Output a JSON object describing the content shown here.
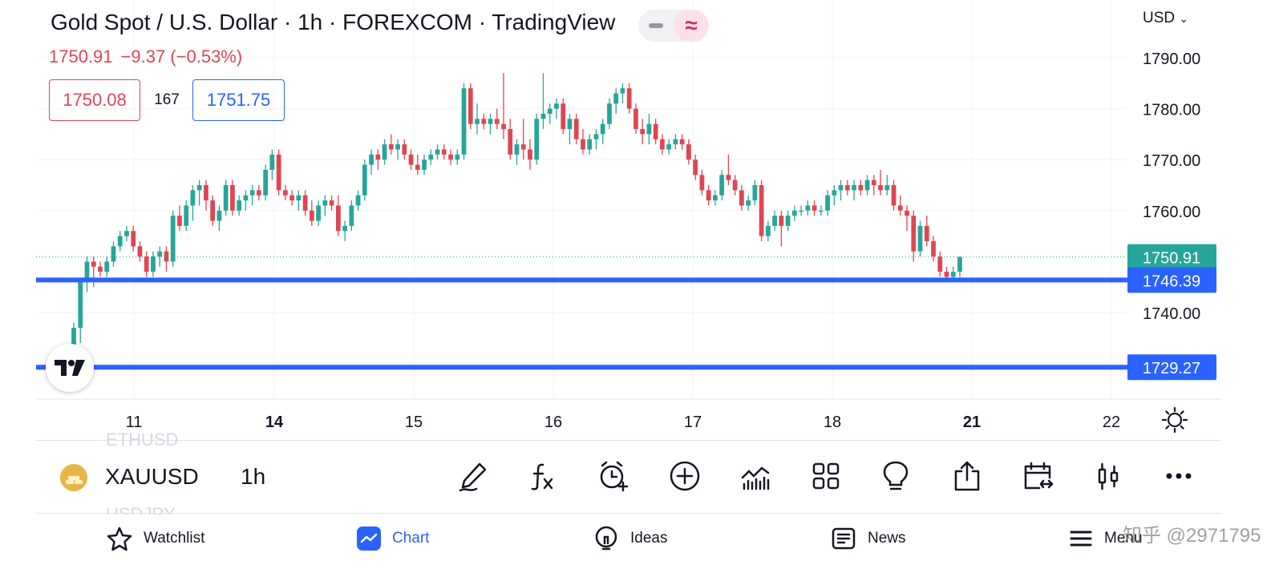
{
  "header": {
    "title": "Gold Spot / U.S. Dollar · 1h · FOREXCOM · TradingView",
    "last_price": "1750.91",
    "change": "−9.37 (−0.53%)",
    "bid": "1750.08",
    "spread": "167",
    "ask": "1751.75",
    "currency": "USD"
  },
  "colors": {
    "up": "#26a69a",
    "down": "#e04552",
    "accent": "#2962ff"
  },
  "chart_data": {
    "type": "candlestick",
    "y_ticks": [
      "1790.00",
      "1780.00",
      "1770.00",
      "1760.00",
      "1740.00"
    ],
    "y_range": [
      1728,
      1792
    ],
    "x_ticks": [
      {
        "label": "11",
        "bold": false
      },
      {
        "label": "14",
        "bold": true
      },
      {
        "label": "15",
        "bold": false
      },
      {
        "label": "16",
        "bold": false
      },
      {
        "label": "17",
        "bold": false
      },
      {
        "label": "18",
        "bold": false
      },
      {
        "label": "21",
        "bold": true
      },
      {
        "label": "22",
        "bold": false
      }
    ],
    "last_price": {
      "label": "1750.91",
      "value": 1750.91
    },
    "horizontal_lines": [
      {
        "label": "1746.39",
        "value": 1746.39
      },
      {
        "label": "1729.27",
        "value": 1729.27
      }
    ],
    "candles": [
      [
        1728,
        1738,
        1726,
        1737
      ],
      [
        1737,
        1746,
        1734,
        1746
      ],
      [
        1746,
        1751,
        1744,
        1750
      ],
      [
        1750,
        1751,
        1745,
        1749
      ],
      [
        1749,
        1750,
        1747,
        1748
      ],
      [
        1748,
        1751,
        1747,
        1750
      ],
      [
        1750,
        1754,
        1749,
        1753
      ],
      [
        1753,
        1756,
        1752,
        1755
      ],
      [
        1755,
        1757,
        1754,
        1756
      ],
      [
        1756,
        1757,
        1752,
        1753
      ],
      [
        1753,
        1754,
        1750,
        1751
      ],
      [
        1751,
        1752,
        1747,
        1748
      ],
      [
        1748,
        1752,
        1747,
        1751
      ],
      [
        1751,
        1753,
        1749,
        1752
      ],
      [
        1752,
        1753,
        1748,
        1750
      ],
      [
        1750,
        1760,
        1749,
        1759
      ],
      [
        1759,
        1761,
        1756,
        1757
      ],
      [
        1757,
        1762,
        1756,
        1761
      ],
      [
        1761,
        1765,
        1758,
        1764
      ],
      [
        1764,
        1766,
        1761,
        1765
      ],
      [
        1765,
        1766,
        1760,
        1762
      ],
      [
        1762,
        1763,
        1757,
        1758
      ],
      [
        1758,
        1761,
        1756,
        1760
      ],
      [
        1760,
        1766,
        1759,
        1765
      ],
      [
        1765,
        1766,
        1759,
        1760
      ],
      [
        1760,
        1763,
        1759,
        1762
      ],
      [
        1762,
        1764,
        1760,
        1763
      ],
      [
        1763,
        1765,
        1761,
        1764
      ],
      [
        1764,
        1765,
        1762,
        1763
      ],
      [
        1763,
        1769,
        1762,
        1768
      ],
      [
        1768,
        1772,
        1766,
        1771
      ],
      [
        1771,
        1772,
        1763,
        1764
      ],
      [
        1764,
        1765,
        1762,
        1763
      ],
      [
        1763,
        1764,
        1761,
        1762
      ],
      [
        1762,
        1764,
        1760,
        1763
      ],
      [
        1763,
        1764,
        1759,
        1760
      ],
      [
        1760,
        1762,
        1757,
        1758
      ],
      [
        1758,
        1762,
        1757,
        1761
      ],
      [
        1761,
        1763,
        1759,
        1762
      ],
      [
        1762,
        1763,
        1760,
        1761
      ],
      [
        1761,
        1763,
        1755,
        1756
      ],
      [
        1756,
        1758,
        1754,
        1757
      ],
      [
        1757,
        1762,
        1756,
        1761
      ],
      [
        1761,
        1764,
        1760,
        1763
      ],
      [
        1763,
        1770,
        1762,
        1769
      ],
      [
        1769,
        1772,
        1767,
        1771
      ],
      [
        1771,
        1772,
        1768,
        1770
      ],
      [
        1770,
        1774,
        1769,
        1773
      ],
      [
        1773,
        1775,
        1771,
        1772
      ],
      [
        1772,
        1774,
        1770,
        1773
      ],
      [
        1773,
        1774,
        1770,
        1771
      ],
      [
        1771,
        1772,
        1768,
        1769
      ],
      [
        1769,
        1771,
        1767,
        1768
      ],
      [
        1768,
        1771,
        1767,
        1770
      ],
      [
        1770,
        1772,
        1769,
        1771
      ],
      [
        1771,
        1773,
        1770,
        1772
      ],
      [
        1772,
        1773,
        1770,
        1771
      ],
      [
        1771,
        1772,
        1769,
        1770
      ],
      [
        1770,
        1772,
        1769,
        1771
      ],
      [
        1771,
        1785,
        1770,
        1784
      ],
      [
        1784,
        1785,
        1776,
        1777
      ],
      [
        1777,
        1781,
        1775,
        1778
      ],
      [
        1778,
        1779,
        1776,
        1777
      ],
      [
        1777,
        1779,
        1775,
        1778
      ],
      [
        1778,
        1780,
        1776,
        1777
      ],
      [
        1777,
        1787,
        1774,
        1776
      ],
      [
        1776,
        1778,
        1770,
        1771
      ],
      [
        1771,
        1774,
        1769,
        1773
      ],
      [
        1773,
        1778,
        1770,
        1772
      ],
      [
        1772,
        1774,
        1768,
        1770
      ],
      [
        1770,
        1779,
        1769,
        1778
      ],
      [
        1778,
        1787,
        1776,
        1779
      ],
      [
        1779,
        1781,
        1777,
        1780
      ],
      [
        1780,
        1782,
        1778,
        1781
      ],
      [
        1781,
        1782,
        1775,
        1776
      ],
      [
        1776,
        1779,
        1773,
        1778
      ],
      [
        1778,
        1779,
        1773,
        1774
      ],
      [
        1774,
        1776,
        1771,
        1772
      ],
      [
        1772,
        1775,
        1771,
        1774
      ],
      [
        1774,
        1776,
        1772,
        1775
      ],
      [
        1775,
        1778,
        1773,
        1777
      ],
      [
        1777,
        1782,
        1776,
        1781
      ],
      [
        1781,
        1784,
        1779,
        1783
      ],
      [
        1783,
        1785,
        1781,
        1784
      ],
      [
        1784,
        1785,
        1779,
        1780
      ],
      [
        1780,
        1781,
        1775,
        1776
      ],
      [
        1776,
        1778,
        1773,
        1775
      ],
      [
        1775,
        1779,
        1773,
        1777
      ],
      [
        1777,
        1778,
        1773,
        1774
      ],
      [
        1774,
        1775,
        1771,
        1772
      ],
      [
        1772,
        1774,
        1771,
        1773
      ],
      [
        1773,
        1775,
        1772,
        1774
      ],
      [
        1774,
        1775,
        1772,
        1773
      ],
      [
        1773,
        1774,
        1769,
        1770
      ],
      [
        1770,
        1771,
        1766,
        1767
      ],
      [
        1767,
        1768,
        1763,
        1764
      ],
      [
        1764,
        1765,
        1761,
        1762
      ],
      [
        1762,
        1764,
        1761,
        1763
      ],
      [
        1763,
        1768,
        1762,
        1767
      ],
      [
        1767,
        1771,
        1765,
        1766
      ],
      [
        1766,
        1767,
        1763,
        1764
      ],
      [
        1764,
        1765,
        1760,
        1761
      ],
      [
        1761,
        1763,
        1760,
        1762
      ],
      [
        1762,
        1766,
        1761,
        1765
      ],
      [
        1765,
        1766,
        1754,
        1755
      ],
      [
        1755,
        1758,
        1754,
        1757
      ],
      [
        1757,
        1760,
        1756,
        1759
      ],
      [
        1759,
        1760,
        1753,
        1757
      ],
      [
        1757,
        1760,
        1756,
        1759
      ],
      [
        1759,
        1761,
        1758,
        1760
      ],
      [
        1760,
        1761,
        1759,
        1760
      ],
      [
        1760,
        1762,
        1759,
        1761
      ],
      [
        1761,
        1762,
        1759,
        1760
      ],
      [
        1760,
        1761,
        1759,
        1760
      ],
      [
        1760,
        1764,
        1759,
        1763
      ],
      [
        1763,
        1765,
        1761,
        1764
      ],
      [
        1764,
        1766,
        1762,
        1765
      ],
      [
        1765,
        1766,
        1763,
        1764
      ],
      [
        1764,
        1766,
        1762,
        1765
      ],
      [
        1765,
        1766,
        1763,
        1764
      ],
      [
        1764,
        1767,
        1763,
        1766
      ],
      [
        1766,
        1767,
        1763,
        1765
      ],
      [
        1765,
        1768,
        1763,
        1764
      ],
      [
        1764,
        1767,
        1763,
        1765
      ],
      [
        1765,
        1766,
        1760,
        1761
      ],
      [
        1761,
        1763,
        1759,
        1760
      ],
      [
        1760,
        1761,
        1756,
        1759
      ],
      [
        1759,
        1760,
        1750,
        1752
      ],
      [
        1752,
        1758,
        1751,
        1757
      ],
      [
        1757,
        1759,
        1753,
        1754
      ],
      [
        1754,
        1755,
        1750,
        1751
      ],
      [
        1751,
        1752,
        1747,
        1748
      ],
      [
        1748,
        1749,
        1746,
        1747
      ],
      [
        1747,
        1749,
        1746,
        1748
      ],
      [
        1748,
        1751,
        1747,
        1750.91
      ]
    ]
  },
  "toolbar": {
    "symbol": "XAUUSD",
    "interval": "1h",
    "ghost_above": "ETHUSD",
    "ghost_below": "USDJPY",
    "tools": [
      {
        "name": "draw-tool-icon"
      },
      {
        "name": "indicators-fx-icon"
      },
      {
        "name": "alert-clock-icon"
      },
      {
        "name": "add-circle-icon"
      },
      {
        "name": "chart-type-icon"
      },
      {
        "name": "layouts-grid-icon"
      },
      {
        "name": "ideas-bulb-icon"
      },
      {
        "name": "share-icon"
      },
      {
        "name": "date-range-icon"
      },
      {
        "name": "candles-icon"
      },
      {
        "name": "more-icon"
      }
    ]
  },
  "nav": {
    "watchlist": "Watchlist",
    "chart": "Chart",
    "ideas": "Ideas",
    "news": "News",
    "menu": "Menu"
  },
  "watermark": "知乎 @2971795"
}
